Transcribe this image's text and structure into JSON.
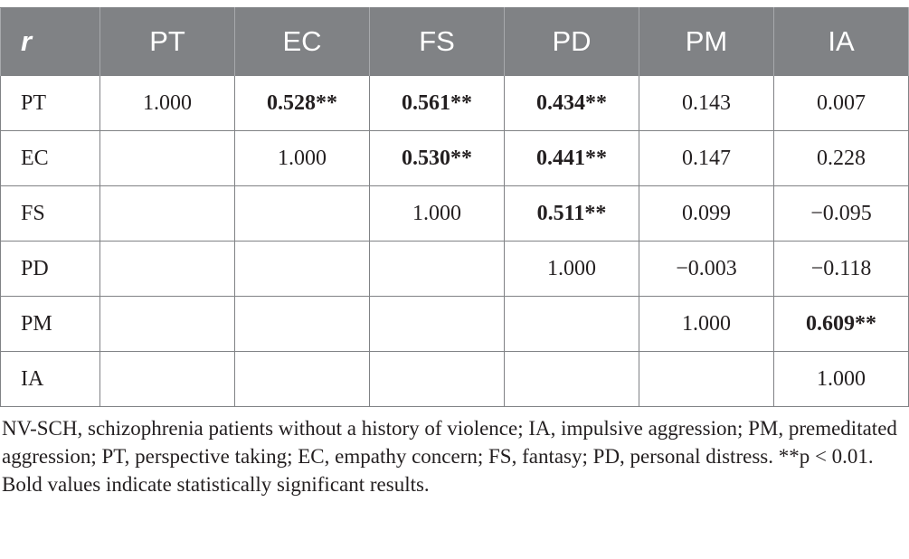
{
  "table": {
    "corner_label": "r",
    "columns": [
      "PT",
      "EC",
      "FS",
      "PD",
      "PM",
      "IA"
    ],
    "rows": [
      {
        "label": "PT",
        "cells": [
          {
            "text": "1.000",
            "bold": false
          },
          {
            "text": "0.528**",
            "bold": true
          },
          {
            "text": "0.561**",
            "bold": true
          },
          {
            "text": "0.434**",
            "bold": true
          },
          {
            "text": "0.143",
            "bold": false
          },
          {
            "text": "0.007",
            "bold": false
          }
        ]
      },
      {
        "label": "EC",
        "cells": [
          {
            "text": "",
            "bold": false
          },
          {
            "text": "1.000",
            "bold": false
          },
          {
            "text": "0.530**",
            "bold": true
          },
          {
            "text": "0.441**",
            "bold": true
          },
          {
            "text": "0.147",
            "bold": false
          },
          {
            "text": "0.228",
            "bold": false
          }
        ]
      },
      {
        "label": "FS",
        "cells": [
          {
            "text": "",
            "bold": false
          },
          {
            "text": "",
            "bold": false
          },
          {
            "text": "1.000",
            "bold": false
          },
          {
            "text": "0.511**",
            "bold": true
          },
          {
            "text": "0.099",
            "bold": false
          },
          {
            "text": "−0.095",
            "bold": false
          }
        ]
      },
      {
        "label": "PD",
        "cells": [
          {
            "text": "",
            "bold": false
          },
          {
            "text": "",
            "bold": false
          },
          {
            "text": "",
            "bold": false
          },
          {
            "text": "1.000",
            "bold": false
          },
          {
            "text": "−0.003",
            "bold": false
          },
          {
            "text": "−0.118",
            "bold": false
          }
        ]
      },
      {
        "label": "PM",
        "cells": [
          {
            "text": "",
            "bold": false
          },
          {
            "text": "",
            "bold": false
          },
          {
            "text": "",
            "bold": false
          },
          {
            "text": "",
            "bold": false
          },
          {
            "text": "1.000",
            "bold": false
          },
          {
            "text": "0.609**",
            "bold": true
          }
        ]
      },
      {
        "label": "IA",
        "cells": [
          {
            "text": "",
            "bold": false
          },
          {
            "text": "",
            "bold": false
          },
          {
            "text": "",
            "bold": false
          },
          {
            "text": "",
            "bold": false
          },
          {
            "text": "",
            "bold": false
          },
          {
            "text": "1.000",
            "bold": false
          }
        ]
      }
    ]
  },
  "notes": {
    "abbreviations": "NV-SCH, schizophrenia patients without a history of violence; IA, impulsive aggression; PM, premeditated aggression; PT, perspective taking; EC, empathy concern; FS, fantasy; PD, personal distress. **p < 0.01.",
    "bold_note": "Bold values indicate statistically significant results."
  }
}
